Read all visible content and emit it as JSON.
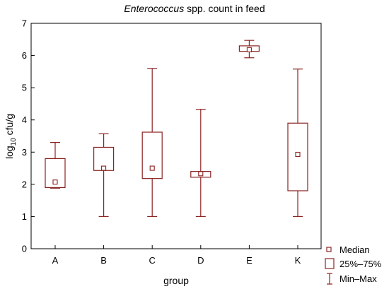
{
  "chart_data": {
    "type": "boxplot",
    "title_italic": "Enterococcus",
    "title_rest": " spp. count in feed",
    "xlabel": "group",
    "ylabel_main": "log",
    "ylabel_sub": "10",
    "ylabel_rest": " cfu/g",
    "ylim": [
      0,
      7
    ],
    "yticks": [
      "0",
      "1",
      "2",
      "3",
      "4",
      "5",
      "6",
      "7"
    ],
    "grid": false,
    "box_color": "#8b2323",
    "legend_position": "bottom-right",
    "legend": {
      "median": "Median",
      "box": "25%–75%",
      "whisker": "Min–Max"
    },
    "categories": [
      "A",
      "B",
      "C",
      "D",
      "E",
      "K"
    ],
    "boxes": [
      {
        "group": "A",
        "min": 1.88,
        "q1": 1.9,
        "median": 2.07,
        "q3": 2.8,
        "max": 3.3
      },
      {
        "group": "B",
        "min": 1.0,
        "q1": 2.43,
        "median": 2.5,
        "q3": 3.15,
        "max": 3.57
      },
      {
        "group": "C",
        "min": 1.0,
        "q1": 2.18,
        "median": 2.5,
        "q3": 3.62,
        "max": 5.6
      },
      {
        "group": "D",
        "min": 1.0,
        "q1": 2.22,
        "median": 2.33,
        "q3": 2.4,
        "max": 4.33
      },
      {
        "group": "E",
        "min": 5.93,
        "q1": 6.13,
        "median": 6.18,
        "q3": 6.3,
        "max": 6.47
      },
      {
        "group": "K",
        "min": 1.0,
        "q1": 1.8,
        "median": 2.93,
        "q3": 3.9,
        "max": 5.58
      }
    ]
  }
}
